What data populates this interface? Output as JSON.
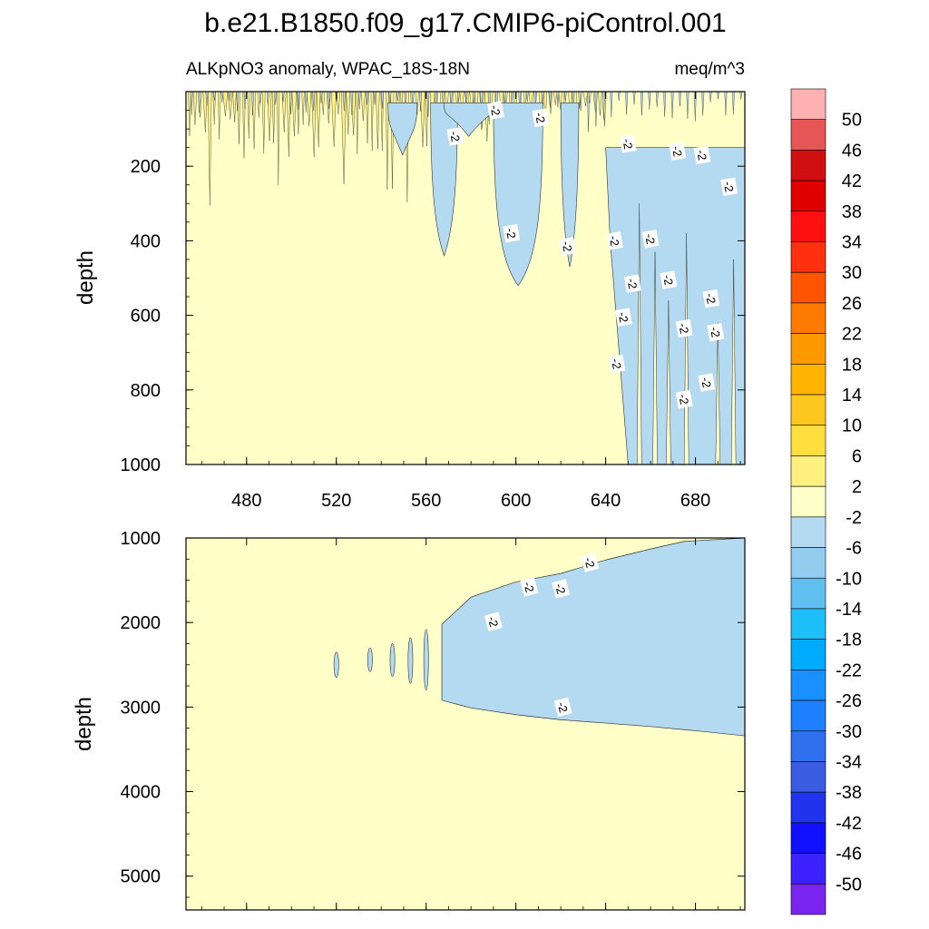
{
  "title": "b.e21.B1850.f09_g17.CMIP6-piControl.001",
  "chart_data": [
    {
      "type": "heatmap",
      "panel": "upper",
      "subtitle_left": "ALKpNO3 anomaly, WPAC_18S-18N",
      "subtitle_right": "meq/m^3",
      "ylabel": "depth",
      "xlim": [
        453,
        702
      ],
      "ylim": [
        1000,
        0
      ],
      "x_ticks": [
        480,
        520,
        560,
        600,
        640,
        680
      ],
      "y_ticks": [
        200,
        400,
        600,
        800,
        1000
      ],
      "contour_labels": [
        {
          "text": "-2",
          "x": 591,
          "y": 50
        },
        {
          "text": "-2",
          "x": 573,
          "y": 120
        },
        {
          "text": "-2",
          "x": 611,
          "y": 70
        },
        {
          "text": "-2",
          "x": 650,
          "y": 140
        },
        {
          "text": "-2",
          "x": 672,
          "y": 160
        },
        {
          "text": "-2",
          "x": 683,
          "y": 170
        },
        {
          "text": "-2",
          "x": 695,
          "y": 255
        },
        {
          "text": "-2",
          "x": 598,
          "y": 380
        },
        {
          "text": "-2",
          "x": 623,
          "y": 415
        },
        {
          "text": "-2",
          "x": 644,
          "y": 400
        },
        {
          "text": "-2",
          "x": 660,
          "y": 395
        },
        {
          "text": "-2",
          "x": 652,
          "y": 515
        },
        {
          "text": "-2",
          "x": 668,
          "y": 505
        },
        {
          "text": "-2",
          "x": 687,
          "y": 555
        },
        {
          "text": "-2",
          "x": 648,
          "y": 605
        },
        {
          "text": "-2",
          "x": 675,
          "y": 635
        },
        {
          "text": "-2",
          "x": 689,
          "y": 645
        },
        {
          "text": "-2",
          "x": 645,
          "y": 730
        },
        {
          "text": "-2",
          "x": 685,
          "y": 780
        },
        {
          "text": "-2",
          "x": 675,
          "y": 825
        }
      ]
    },
    {
      "type": "heatmap",
      "panel": "lower",
      "ylabel": "depth",
      "xlim": [
        453,
        702
      ],
      "ylim": [
        5400,
        1000
      ],
      "x_ticks": [
        480,
        520,
        560,
        600,
        640,
        680
      ],
      "y_ticks": [
        1000,
        2000,
        3000,
        4000,
        5000
      ],
      "negative_region": {
        "level": "-6 to -2",
        "x_start": 567,
        "top_depth": [
          [
            567,
            2020
          ],
          [
            580,
            1700
          ],
          [
            600,
            1520
          ],
          [
            620,
            1420
          ],
          [
            640,
            1260
          ],
          [
            660,
            1130
          ],
          [
            675,
            1040
          ],
          [
            702,
            1000
          ]
        ],
        "bottom_depth": [
          [
            567,
            2920
          ],
          [
            580,
            3010
          ],
          [
            600,
            3090
          ],
          [
            620,
            3150
          ],
          [
            640,
            3190
          ],
          [
            660,
            3230
          ],
          [
            680,
            3280
          ],
          [
            702,
            3340
          ]
        ]
      },
      "contour_labels": [
        {
          "text": "-2",
          "x": 590,
          "y": 1990
        },
        {
          "text": "-2",
          "x": 606,
          "y": 1580
        },
        {
          "text": "-2",
          "x": 620,
          "y": 1600
        },
        {
          "text": "-2",
          "x": 633,
          "y": 1290
        },
        {
          "text": "-2",
          "x": 621,
          "y": 3000
        }
      ]
    }
  ],
  "colorbar": {
    "labels": [
      "50",
      "46",
      "42",
      "38",
      "34",
      "30",
      "26",
      "22",
      "18",
      "14",
      "10",
      "6",
      "2",
      "-2",
      "-6",
      "-10",
      "-14",
      "-18",
      "-22",
      "-26",
      "-30",
      "-34",
      "-38",
      "-42",
      "-46",
      "-50"
    ],
    "colors": [
      "#fdb1b1",
      "#e55656",
      "#d01010",
      "#e00000",
      "#ff1010",
      "#ff3010",
      "#ff5500",
      "#ff7a00",
      "#ff9900",
      "#ffb400",
      "#ffc820",
      "#ffdf40",
      "#fff080",
      "#ffffc8",
      "#b4daf2",
      "#92cdef",
      "#5fc0f0",
      "#1ebff8",
      "#00aaff",
      "#1a90ff",
      "#1e80ff",
      "#3070ee",
      "#3a5ce0",
      "#2233ee",
      "#1010ff",
      "#3b22ff",
      "#7a24f0"
    ]
  },
  "colors": {
    "near_zero": "#ffffc8",
    "negative": "#b4daf2",
    "positive": "#fff080"
  }
}
